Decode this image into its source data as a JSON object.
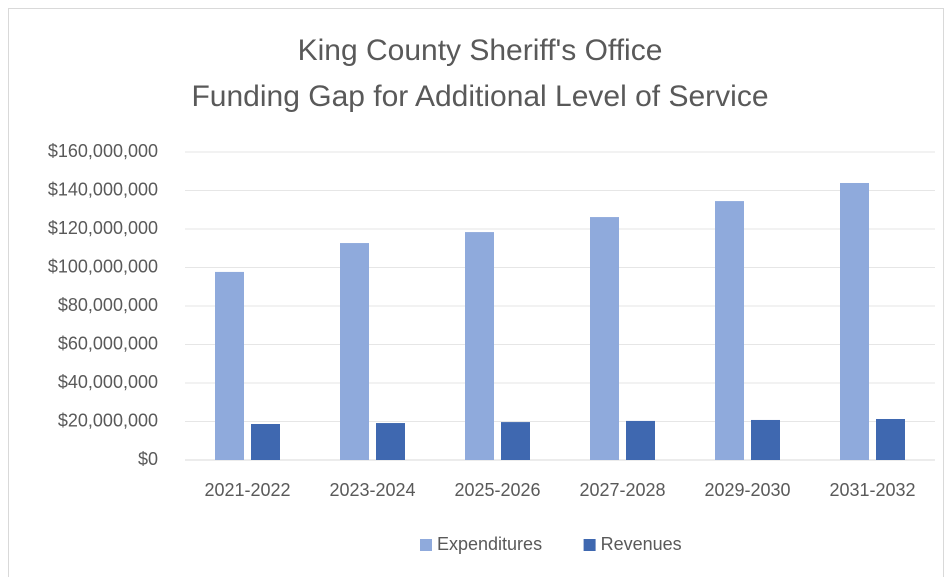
{
  "chart_data": {
    "type": "bar",
    "title": [
      "King County Sheriff's Office",
      "Funding Gap for Additional Level of Service"
    ],
    "categories": [
      "2021-2022",
      "2023-2024",
      "2025-2026",
      "2027-2028",
      "2029-2030",
      "2031-2032"
    ],
    "series": [
      {
        "name": "Expenditures",
        "color": "#8faadc",
        "values": [
          97700000,
          112700000,
          118400000,
          126200000,
          134500000,
          143900000
        ]
      },
      {
        "name": "Revenues",
        "color": "#3f68b0",
        "values": [
          18700000,
          19200000,
          19700000,
          20300000,
          20800000,
          21300000
        ]
      }
    ],
    "ylim": [
      0,
      160000000
    ],
    "yticks": [
      {
        "value": 0,
        "label": "$0"
      },
      {
        "value": 20000000,
        "label": "$20,000,000"
      },
      {
        "value": 40000000,
        "label": "$40,000,000"
      },
      {
        "value": 60000000,
        "label": "$60,000,000"
      },
      {
        "value": 80000000,
        "label": "$80,000,000"
      },
      {
        "value": 100000000,
        "label": "$100,000,000"
      },
      {
        "value": 120000000,
        "label": "$120,000,000"
      },
      {
        "value": 140000000,
        "label": "$140,000,000"
      },
      {
        "value": 160000000,
        "label": "$160,000,000"
      }
    ],
    "grid": true,
    "legend": "bottom"
  }
}
